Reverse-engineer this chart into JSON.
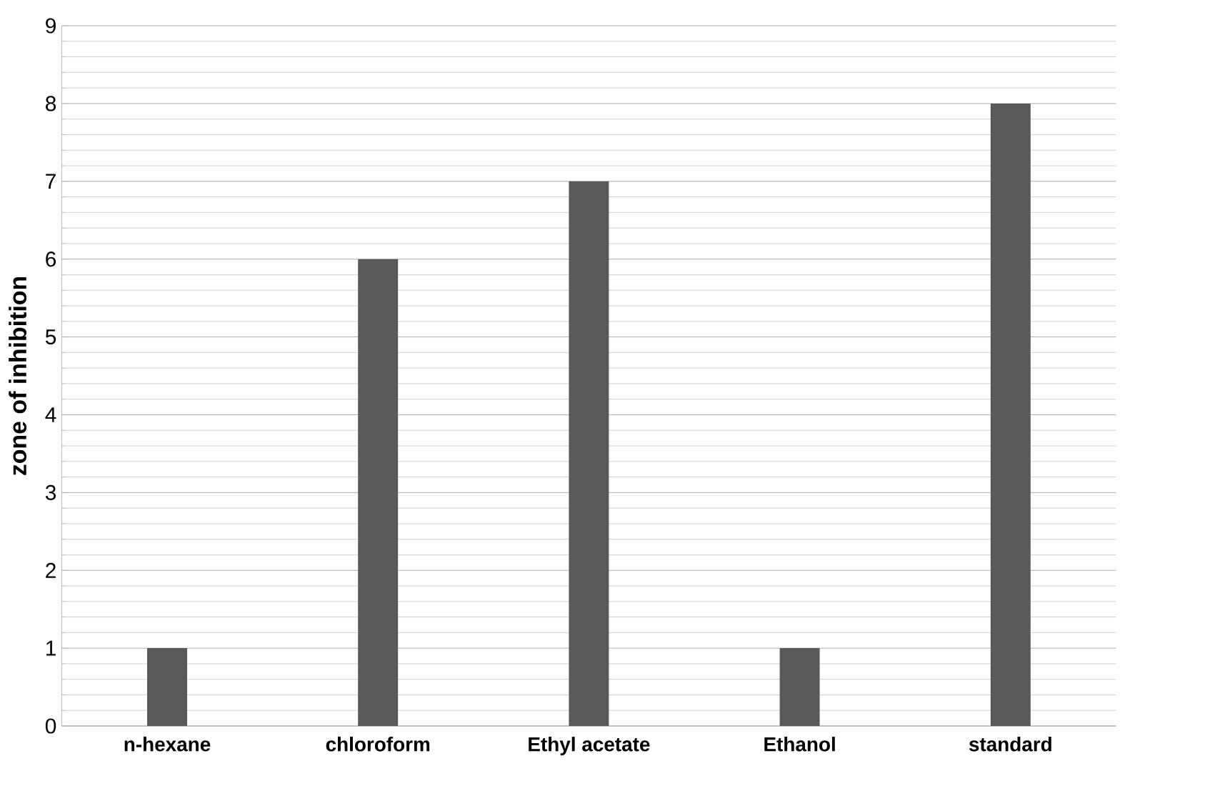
{
  "chart_data": {
    "type": "bar",
    "ylabel": "zone of inhibition",
    "categories": [
      "n-hexane",
      "chloroform",
      "Ethyl acetate",
      "Ethanol",
      "standard"
    ],
    "values": [
      1,
      6,
      7,
      1,
      8
    ],
    "color": "#595959",
    "ylim": [
      0,
      9
    ],
    "yticks": [
      0,
      1,
      2,
      3,
      4,
      5,
      6,
      7,
      8,
      9
    ],
    "grid": "y"
  }
}
